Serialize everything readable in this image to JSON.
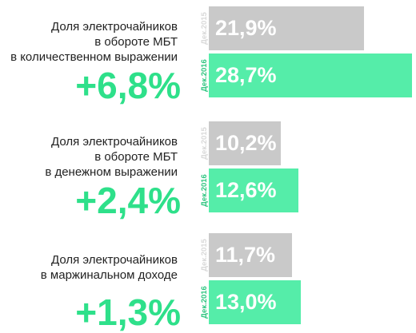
{
  "chart_data": {
    "type": "bar",
    "orientation": "horizontal",
    "unit": "%",
    "periods": [
      "Дек.2015",
      "Дек.2016"
    ],
    "colors": {
      "prev": "#c9c9c9",
      "curr": "#55eda9",
      "delta": "#2ee08a"
    },
    "groups": [
      {
        "label_lines": [
          "Доля электрочайников",
          "в обороте МБТ",
          "в количественном выражении"
        ],
        "delta": "+6,8%",
        "values": [
          21.9,
          28.7
        ],
        "value_labels": [
          "21,9%",
          "28,7%"
        ]
      },
      {
        "label_lines": [
          "Доля электрочайников",
          "в обороте МБТ",
          "в денежном выражении"
        ],
        "delta": "+2,4%",
        "values": [
          10.2,
          12.6
        ],
        "value_labels": [
          "10,2%",
          "12,6%"
        ]
      },
      {
        "label_lines": [
          "Доля электрочайников",
          "в маржинальном доходе"
        ],
        "delta": "+1,3%",
        "values": [
          11.7,
          13.0
        ],
        "value_labels": [
          "11,7%",
          "13,0%"
        ]
      }
    ]
  }
}
